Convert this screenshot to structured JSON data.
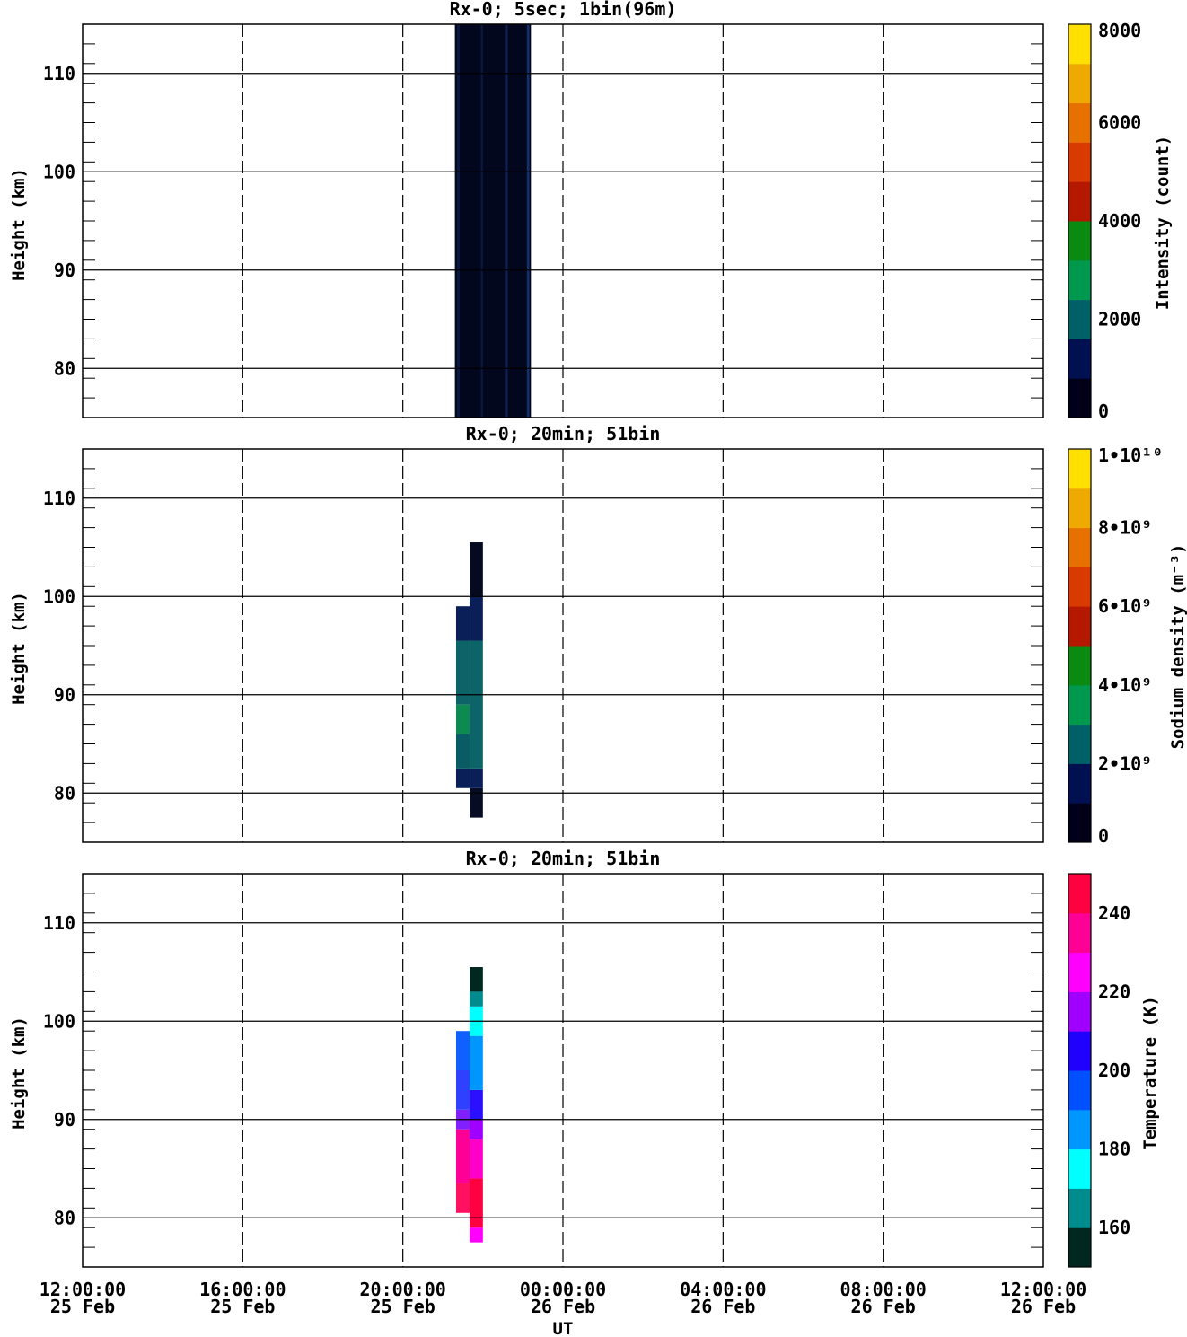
{
  "chart_data": [
    {
      "type": "heatmap",
      "title": "Rx-0;  5sec; 1bin(96m)",
      "ylabel": "Height (km)",
      "ylim": [
        75,
        115
      ],
      "yticks": [
        80,
        90,
        100,
        110
      ],
      "colorbar": {
        "label": "Intensity (count)",
        "range": [
          0,
          8000
        ],
        "ticks": [
          {
            "value": 0,
            "label": "0"
          },
          {
            "value": 2000,
            "label": "2000"
          },
          {
            "value": 4000,
            "label": "4000"
          },
          {
            "value": 6000,
            "label": "6000"
          },
          {
            "value": 8000,
            "label": "8000"
          }
        ],
        "colors": [
          "#000018",
          "#001050",
          "#006068",
          "#00984c",
          "#0a8a10",
          "#b41800",
          "#d83a00",
          "#e67000",
          "#eeaa00",
          "#ffe000"
        ]
      },
      "blocks": [
        {
          "t0": 21.3,
          "t1": 23.2,
          "h0": 75,
          "h1": 115,
          "value": 300,
          "color": "#03071e"
        },
        {
          "t0": 21.35,
          "t1": 21.42,
          "h0": 75,
          "h1": 115,
          "value": 900,
          "color": "#0b1840"
        },
        {
          "t0": 21.95,
          "t1": 22.0,
          "h0": 75,
          "h1": 115,
          "value": 900,
          "color": "#0b1840"
        },
        {
          "t0": 22.55,
          "t1": 22.62,
          "h0": 75,
          "h1": 115,
          "value": 1100,
          "color": "#10224f"
        },
        {
          "t0": 23.1,
          "t1": 23.16,
          "h0": 75,
          "h1": 115,
          "value": 1200,
          "color": "#14306a"
        }
      ]
    },
    {
      "type": "heatmap",
      "title": "Rx-0; 20min; 51bin",
      "ylabel": "Height (km)",
      "ylim": [
        75,
        115
      ],
      "yticks": [
        80,
        90,
        100,
        110
      ],
      "colorbar": {
        "label": "Sodium density (m⁻³)",
        "range": [
          0,
          10000000000.0
        ],
        "ticks": [
          {
            "value": 0,
            "label": "0"
          },
          {
            "value": 2000000000.0,
            "label": "2•10⁹"
          },
          {
            "value": 4000000000.0,
            "label": "4•10⁹"
          },
          {
            "value": 6000000000.0,
            "label": "6•10⁹"
          },
          {
            "value": 8000000000.0,
            "label": "8•10⁹"
          },
          {
            "value": 10000000000.0,
            "label": "1•10¹⁰"
          }
        ],
        "colors": [
          "#000018",
          "#001050",
          "#006068",
          "#00984c",
          "#0a8a10",
          "#b41800",
          "#d83a00",
          "#e67000",
          "#eeaa00",
          "#ffe000"
        ]
      },
      "blocks": [
        {
          "t0": 21.33,
          "t1": 21.67,
          "h0": 80.5,
          "h1": 82.5,
          "value": 1400000000.0,
          "color": "#0a1f58"
        },
        {
          "t0": 21.33,
          "t1": 21.67,
          "h0": 82.5,
          "h1": 86.0,
          "value": 2300000000.0,
          "color": "#0a5c64"
        },
        {
          "t0": 21.33,
          "t1": 21.67,
          "h0": 86.0,
          "h1": 89.0,
          "value": 3200000000.0,
          "color": "#0c8a50"
        },
        {
          "t0": 21.33,
          "t1": 21.67,
          "h0": 89.0,
          "h1": 95.5,
          "value": 2400000000.0,
          "color": "#0c6468"
        },
        {
          "t0": 21.33,
          "t1": 21.67,
          "h0": 95.5,
          "h1": 99.0,
          "value": 1500000000.0,
          "color": "#0a1f58"
        },
        {
          "t0": 21.67,
          "t1": 22.0,
          "h0": 77.5,
          "h1": 80.5,
          "value": 400000000.0,
          "color": "#060c24"
        },
        {
          "t0": 21.67,
          "t1": 22.0,
          "h0": 80.5,
          "h1": 82.5,
          "value": 1400000000.0,
          "color": "#0a1f58"
        },
        {
          "t0": 21.67,
          "t1": 22.0,
          "h0": 82.5,
          "h1": 95.5,
          "value": 2400000000.0,
          "color": "#0c6468"
        },
        {
          "t0": 21.67,
          "t1": 22.0,
          "h0": 95.5,
          "h1": 100.0,
          "value": 1400000000.0,
          "color": "#0a1f58"
        },
        {
          "t0": 21.67,
          "t1": 22.0,
          "h0": 100.0,
          "h1": 105.5,
          "value": 300000000.0,
          "color": "#050a20"
        }
      ]
    },
    {
      "type": "heatmap",
      "title": "Rx-0; 20min; 51bin",
      "ylabel": "Height (km)",
      "xlabel": "UT",
      "ylim": [
        75,
        115
      ],
      "yticks": [
        80,
        90,
        100,
        110
      ],
      "colorbar": {
        "label": "Temperature (K)",
        "range": [
          150,
          250
        ],
        "ticks": [
          {
            "value": 160,
            "label": "160"
          },
          {
            "value": 180,
            "label": "180"
          },
          {
            "value": 200,
            "label": "200"
          },
          {
            "value": 220,
            "label": "220"
          },
          {
            "value": 240,
            "label": "240"
          }
        ],
        "colors": [
          "#002820",
          "#008c8c",
          "#00ffff",
          "#0096ff",
          "#0050ff",
          "#2000ff",
          "#a000ff",
          "#ff00ff",
          "#ff0096",
          "#ff0040"
        ]
      },
      "blocks": [
        {
          "t0": 21.33,
          "t1": 21.67,
          "h0": 80.5,
          "h1": 83.5,
          "value": 245,
          "color": "#ff1060"
        },
        {
          "t0": 21.33,
          "t1": 21.67,
          "h0": 83.5,
          "h1": 89.0,
          "value": 238,
          "color": "#ff0096"
        },
        {
          "t0": 21.33,
          "t1": 21.67,
          "h0": 89.0,
          "h1": 91.0,
          "value": 215,
          "color": "#8020ff"
        },
        {
          "t0": 21.33,
          "t1": 21.67,
          "h0": 91.0,
          "h1": 95.0,
          "value": 205,
          "color": "#3040ff"
        },
        {
          "t0": 21.33,
          "t1": 21.67,
          "h0": 95.0,
          "h1": 99.0,
          "value": 198,
          "color": "#1060ff"
        },
        {
          "t0": 21.67,
          "t1": 22.0,
          "h0": 77.5,
          "h1": 79.0,
          "value": 230,
          "color": "#ff00ff"
        },
        {
          "t0": 21.67,
          "t1": 22.0,
          "h0": 79.0,
          "h1": 84.0,
          "value": 248,
          "color": "#ff0040"
        },
        {
          "t0": 21.67,
          "t1": 22.0,
          "h0": 84.0,
          "h1": 88.0,
          "value": 235,
          "color": "#ff00c8"
        },
        {
          "t0": 21.67,
          "t1": 22.0,
          "h0": 88.0,
          "h1": 90.0,
          "value": 215,
          "color": "#a000ff"
        },
        {
          "t0": 21.67,
          "t1": 22.0,
          "h0": 90.0,
          "h1": 93.0,
          "value": 203,
          "color": "#2a10ff"
        },
        {
          "t0": 21.67,
          "t1": 22.0,
          "h0": 93.0,
          "h1": 98.5,
          "value": 185,
          "color": "#0096ff"
        },
        {
          "t0": 21.67,
          "t1": 22.0,
          "h0": 98.5,
          "h1": 101.5,
          "value": 175,
          "color": "#00ffff"
        },
        {
          "t0": 21.67,
          "t1": 22.0,
          "h0": 101.5,
          "h1": 103.0,
          "value": 166,
          "color": "#008c8c"
        },
        {
          "t0": 21.67,
          "t1": 22.0,
          "h0": 103.0,
          "h1": 105.5,
          "value": 155,
          "color": "#002820"
        }
      ]
    }
  ],
  "xaxis": {
    "range": [
      12,
      36
    ],
    "ticks": [
      {
        "value": 12,
        "time": "12:00:00",
        "date": "25 Feb"
      },
      {
        "value": 16,
        "time": "16:00:00",
        "date": "25 Feb"
      },
      {
        "value": 20,
        "time": "20:00:00",
        "date": "25 Feb"
      },
      {
        "value": 24,
        "time": "00:00:00",
        "date": "26 Feb"
      },
      {
        "value": 28,
        "time": "04:00:00",
        "date": "26 Feb"
      },
      {
        "value": 32,
        "time": "08:00:00",
        "date": "26 Feb"
      },
      {
        "value": 36,
        "time": "12:00:00",
        "date": "26 Feb"
      }
    ]
  }
}
